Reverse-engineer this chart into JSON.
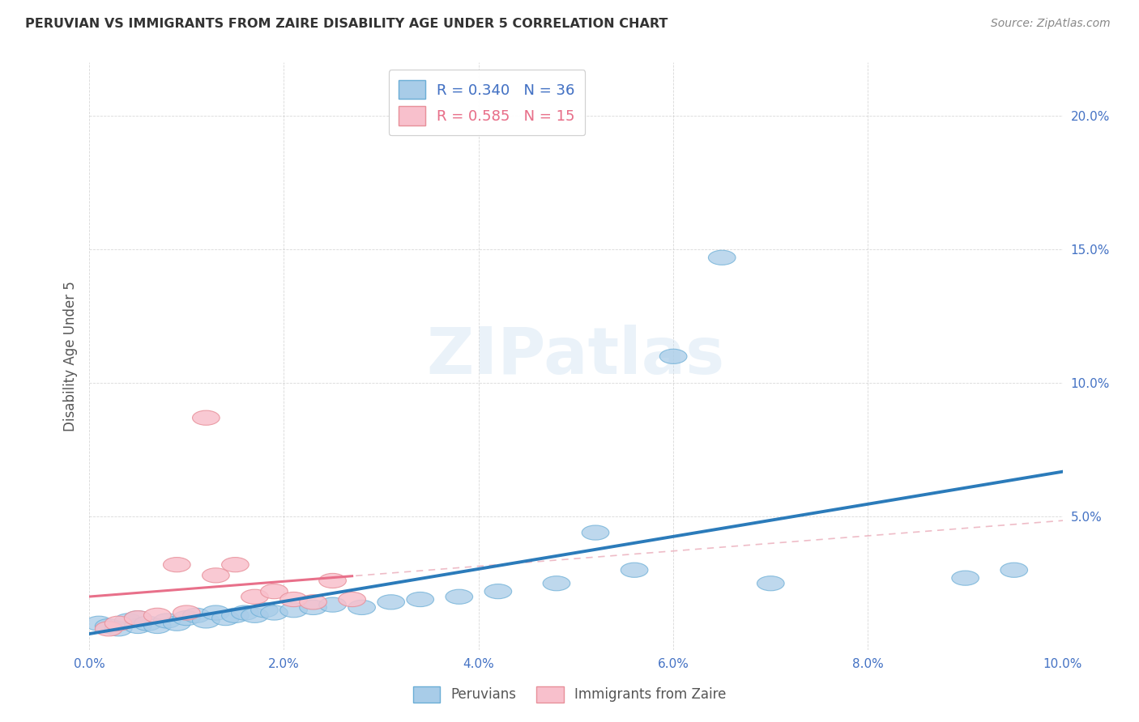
{
  "title": "PERUVIAN VS IMMIGRANTS FROM ZAIRE DISABILITY AGE UNDER 5 CORRELATION CHART",
  "source": "Source: ZipAtlas.com",
  "ylabel": "Disability Age Under 5",
  "xlim": [
    0.0,
    0.1
  ],
  "ylim": [
    0.0,
    0.22
  ],
  "xticks": [
    0.0,
    0.02,
    0.04,
    0.06,
    0.08,
    0.1
  ],
  "yticks": [
    0.0,
    0.05,
    0.1,
    0.15,
    0.2
  ],
  "xtick_labels": [
    "0.0%",
    "2.0%",
    "4.0%",
    "6.0%",
    "8.0%",
    "10.0%"
  ],
  "ytick_labels": [
    "",
    "5.0%",
    "10.0%",
    "15.0%",
    "20.0%"
  ],
  "peruvians_x": [
    0.001,
    0.002,
    0.003,
    0.004,
    0.005,
    0.005,
    0.006,
    0.007,
    0.008,
    0.009,
    0.01,
    0.011,
    0.012,
    0.013,
    0.014,
    0.015,
    0.016,
    0.017,
    0.018,
    0.019,
    0.021,
    0.023,
    0.025,
    0.028,
    0.031,
    0.034,
    0.038,
    0.042,
    0.048,
    0.052,
    0.056,
    0.06,
    0.065,
    0.07,
    0.09,
    0.095
  ],
  "peruvians_y": [
    0.01,
    0.009,
    0.008,
    0.011,
    0.009,
    0.012,
    0.01,
    0.009,
    0.011,
    0.01,
    0.012,
    0.013,
    0.011,
    0.014,
    0.012,
    0.013,
    0.014,
    0.013,
    0.015,
    0.014,
    0.015,
    0.016,
    0.017,
    0.016,
    0.018,
    0.019,
    0.02,
    0.022,
    0.025,
    0.044,
    0.03,
    0.11,
    0.147,
    0.025,
    0.027,
    0.03
  ],
  "zaire_x": [
    0.002,
    0.003,
    0.005,
    0.007,
    0.009,
    0.01,
    0.012,
    0.013,
    0.015,
    0.017,
    0.019,
    0.021,
    0.023,
    0.025,
    0.027
  ],
  "zaire_y": [
    0.008,
    0.01,
    0.012,
    0.013,
    0.032,
    0.014,
    0.087,
    0.028,
    0.032,
    0.02,
    0.022,
    0.019,
    0.018,
    0.026,
    0.019
  ],
  "peruvians_R": 0.34,
  "peruvians_N": 36,
  "zaire_R": 0.585,
  "zaire_N": 15,
  "blue_color": "#a8cce8",
  "blue_edge_color": "#6baed6",
  "blue_line_color": "#2b7bba",
  "pink_color": "#f8c0cc",
  "pink_edge_color": "#e8909a",
  "pink_line_color": "#e8708a",
  "pink_dash_color": "#e8a0b0",
  "tick_color": "#4472c4",
  "watermark_text": "ZIPatlas",
  "background_color": "#ffffff"
}
